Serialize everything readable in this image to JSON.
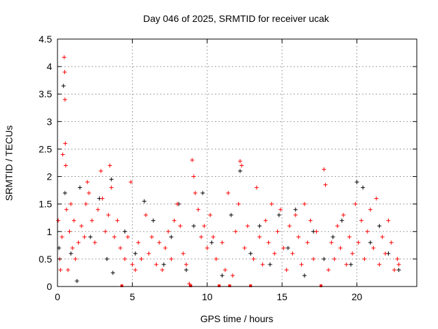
{
  "chart_data": {
    "type": "scatter",
    "title": "Day 046 of 2025, SRMTID for receiver ucak",
    "xlabel": "GPS time / hours",
    "ylabel": "SRMTID / TECUs",
    "xlim": [
      0,
      24
    ],
    "ylim": [
      0,
      4.5
    ],
    "xticks": [
      0,
      5,
      10,
      15,
      20
    ],
    "xtick_labels": [
      "0",
      "5",
      "10",
      "15",
      "20"
    ],
    "yticks": [
      0,
      0.5,
      1,
      1.5,
      2,
      2.5,
      3,
      3.5,
      4,
      4.5
    ],
    "ytick_labels": [
      "0",
      "0.5",
      "1",
      "1.5",
      "2",
      "2.5",
      "3",
      "3.5",
      "4",
      "4.5"
    ],
    "grid": true,
    "legend": "none",
    "series": [
      {
        "name": "black",
        "color": "#000000",
        "points": [
          [
            0.1,
            0.7
          ],
          [
            0.4,
            3.65
          ],
          [
            0.5,
            1.7
          ],
          [
            0.9,
            0.6
          ],
          [
            1.3,
            0.1
          ],
          [
            1.5,
            1.8
          ],
          [
            2.2,
            0.9
          ],
          [
            2.8,
            1.6
          ],
          [
            3.3,
            0.5
          ],
          [
            3.6,
            1.95
          ],
          [
            3.7,
            0.25
          ],
          [
            4.5,
            1.0
          ],
          [
            5.2,
            0.6
          ],
          [
            5.8,
            1.55
          ],
          [
            6.4,
            1.2
          ],
          [
            7.1,
            0.4
          ],
          [
            7.6,
            0.9
          ],
          [
            8.1,
            1.5
          ],
          [
            8.6,
            0.3
          ],
          [
            9.1,
            1.1
          ],
          [
            9.7,
            1.7
          ],
          [
            10.3,
            0.8
          ],
          [
            11.0,
            0.2
          ],
          [
            11.6,
            1.3
          ],
          [
            12.2,
            2.1
          ],
          [
            12.9,
            0.6
          ],
          [
            13.5,
            1.1
          ],
          [
            14.2,
            0.4
          ],
          [
            14.8,
            1.3
          ],
          [
            15.4,
            0.7
          ],
          [
            15.9,
            1.4
          ],
          [
            16.5,
            0.2
          ],
          [
            17.1,
            1.0
          ],
          [
            17.8,
            0.5
          ],
          [
            18.4,
            0.9
          ],
          [
            19.0,
            1.2
          ],
          [
            19.6,
            0.4
          ],
          [
            20.0,
            1.9
          ],
          [
            20.4,
            1.8
          ],
          [
            20.9,
            0.8
          ],
          [
            21.5,
            1.1
          ],
          [
            22.1,
            0.6
          ],
          [
            22.8,
            0.3
          ]
        ]
      },
      {
        "name": "red",
        "color": "#ff0000",
        "points": [
          [
            0.05,
            1.2
          ],
          [
            0.15,
            0.5
          ],
          [
            0.2,
            0.3
          ],
          [
            0.3,
            0.9
          ],
          [
            0.35,
            2.4
          ],
          [
            0.45,
            4.17
          ],
          [
            0.48,
            3.9
          ],
          [
            0.5,
            3.4
          ],
          [
            0.52,
            2.6
          ],
          [
            0.55,
            2.2
          ],
          [
            0.6,
            1.4
          ],
          [
            0.7,
            0.3
          ],
          [
            0.8,
            1.0
          ],
          [
            0.9,
            1.5
          ],
          [
            1.0,
            0.7
          ],
          [
            1.1,
            1.2
          ],
          [
            1.2,
            0.5
          ],
          [
            1.4,
            0.8
          ],
          [
            1.6,
            1.1
          ],
          [
            1.8,
            0.9
          ],
          [
            1.9,
            1.5
          ],
          [
            2.0,
            1.9
          ],
          [
            2.1,
            1.7
          ],
          [
            2.3,
            1.2
          ],
          [
            2.5,
            0.8
          ],
          [
            2.7,
            1.4
          ],
          [
            2.9,
            2.1
          ],
          [
            3.0,
            1.6
          ],
          [
            3.2,
            1.0
          ],
          [
            3.4,
            1.3
          ],
          [
            3.5,
            2.2
          ],
          [
            3.6,
            1.8
          ],
          [
            3.8,
            0.9
          ],
          [
            4.0,
            1.2
          ],
          [
            4.2,
            0.7
          ],
          [
            4.3,
            0.0
          ],
          [
            4.5,
            0.5
          ],
          [
            4.7,
            0.9
          ],
          [
            4.9,
            1.9
          ],
          [
            5.0,
            0.4
          ],
          [
            5.2,
            0.3
          ],
          [
            5.4,
            0.8
          ],
          [
            5.6,
            0.5
          ],
          [
            5.9,
            1.3
          ],
          [
            6.1,
            0.6
          ],
          [
            6.3,
            0.9
          ],
          [
            6.6,
            0.4
          ],
          [
            6.8,
            0.8
          ],
          [
            7.0,
            0.3
          ],
          [
            7.2,
            0.7
          ],
          [
            7.4,
            1.0
          ],
          [
            7.6,
            0.5
          ],
          [
            7.8,
            1.2
          ],
          [
            8.0,
            1.5
          ],
          [
            8.2,
            1.1
          ],
          [
            8.4,
            0.6
          ],
          [
            8.6,
            0.4
          ],
          [
            8.8,
            0.05
          ],
          [
            8.9,
            0.0
          ],
          [
            9.0,
            2.3
          ],
          [
            9.1,
            2.0
          ],
          [
            9.2,
            1.7
          ],
          [
            9.4,
            1.4
          ],
          [
            9.6,
            0.9
          ],
          [
            9.8,
            1.1
          ],
          [
            10.0,
            0.7
          ],
          [
            10.2,
            1.3
          ],
          [
            10.4,
            0.9
          ],
          [
            10.6,
            0.5
          ],
          [
            10.8,
            0.0
          ],
          [
            11.0,
            0.8
          ],
          [
            11.2,
            0.3
          ],
          [
            11.4,
            1.7
          ],
          [
            11.5,
            0.0
          ],
          [
            11.7,
            0.2
          ],
          [
            11.9,
            1.0
          ],
          [
            12.1,
            1.5
          ],
          [
            12.2,
            2.28
          ],
          [
            12.3,
            2.2
          ],
          [
            12.5,
            0.7
          ],
          [
            12.7,
            1.1
          ],
          [
            12.9,
            0.0
          ],
          [
            13.1,
            0.5
          ],
          [
            13.3,
            1.8
          ],
          [
            13.5,
            0.9
          ],
          [
            13.7,
            0.4
          ],
          [
            13.9,
            1.2
          ],
          [
            14.1,
            0.8
          ],
          [
            14.3,
            1.5
          ],
          [
            14.5,
            0.6
          ],
          [
            14.7,
            1.0
          ],
          [
            14.9,
            1.4
          ],
          [
            15.1,
            0.7
          ],
          [
            15.3,
            0.3
          ],
          [
            15.5,
            1.1
          ],
          [
            15.7,
            0.6
          ],
          [
            15.9,
            1.3
          ],
          [
            16.1,
            0.9
          ],
          [
            16.3,
            0.4
          ],
          [
            16.5,
            1.5
          ],
          [
            16.7,
            0.8
          ],
          [
            16.9,
            1.2
          ],
          [
            17.1,
            0.5
          ],
          [
            17.3,
            1.0
          ],
          [
            17.6,
            0.0
          ],
          [
            17.8,
            2.13
          ],
          [
            17.9,
            1.85
          ],
          [
            18.1,
            0.3
          ],
          [
            18.3,
            0.8
          ],
          [
            18.5,
            0.5
          ],
          [
            18.7,
            1.1
          ],
          [
            18.9,
            0.7
          ],
          [
            19.1,
            1.3
          ],
          [
            19.3,
            0.4
          ],
          [
            19.5,
            0.9
          ],
          [
            19.7,
            0.6
          ],
          [
            19.9,
            1.5
          ],
          [
            20.1,
            0.8
          ],
          [
            20.3,
            1.2
          ],
          [
            20.5,
            0.5
          ],
          [
            20.7,
            1.0
          ],
          [
            20.9,
            1.4
          ],
          [
            21.1,
            0.7
          ],
          [
            21.3,
            1.6
          ],
          [
            21.5,
            0.4
          ],
          [
            21.7,
            0.9
          ],
          [
            21.9,
            0.6
          ],
          [
            22.1,
            1.2
          ],
          [
            22.3,
            0.8
          ],
          [
            22.5,
            0.3
          ],
          [
            22.7,
            0.5
          ],
          [
            22.8,
            0.4
          ]
        ]
      }
    ]
  }
}
